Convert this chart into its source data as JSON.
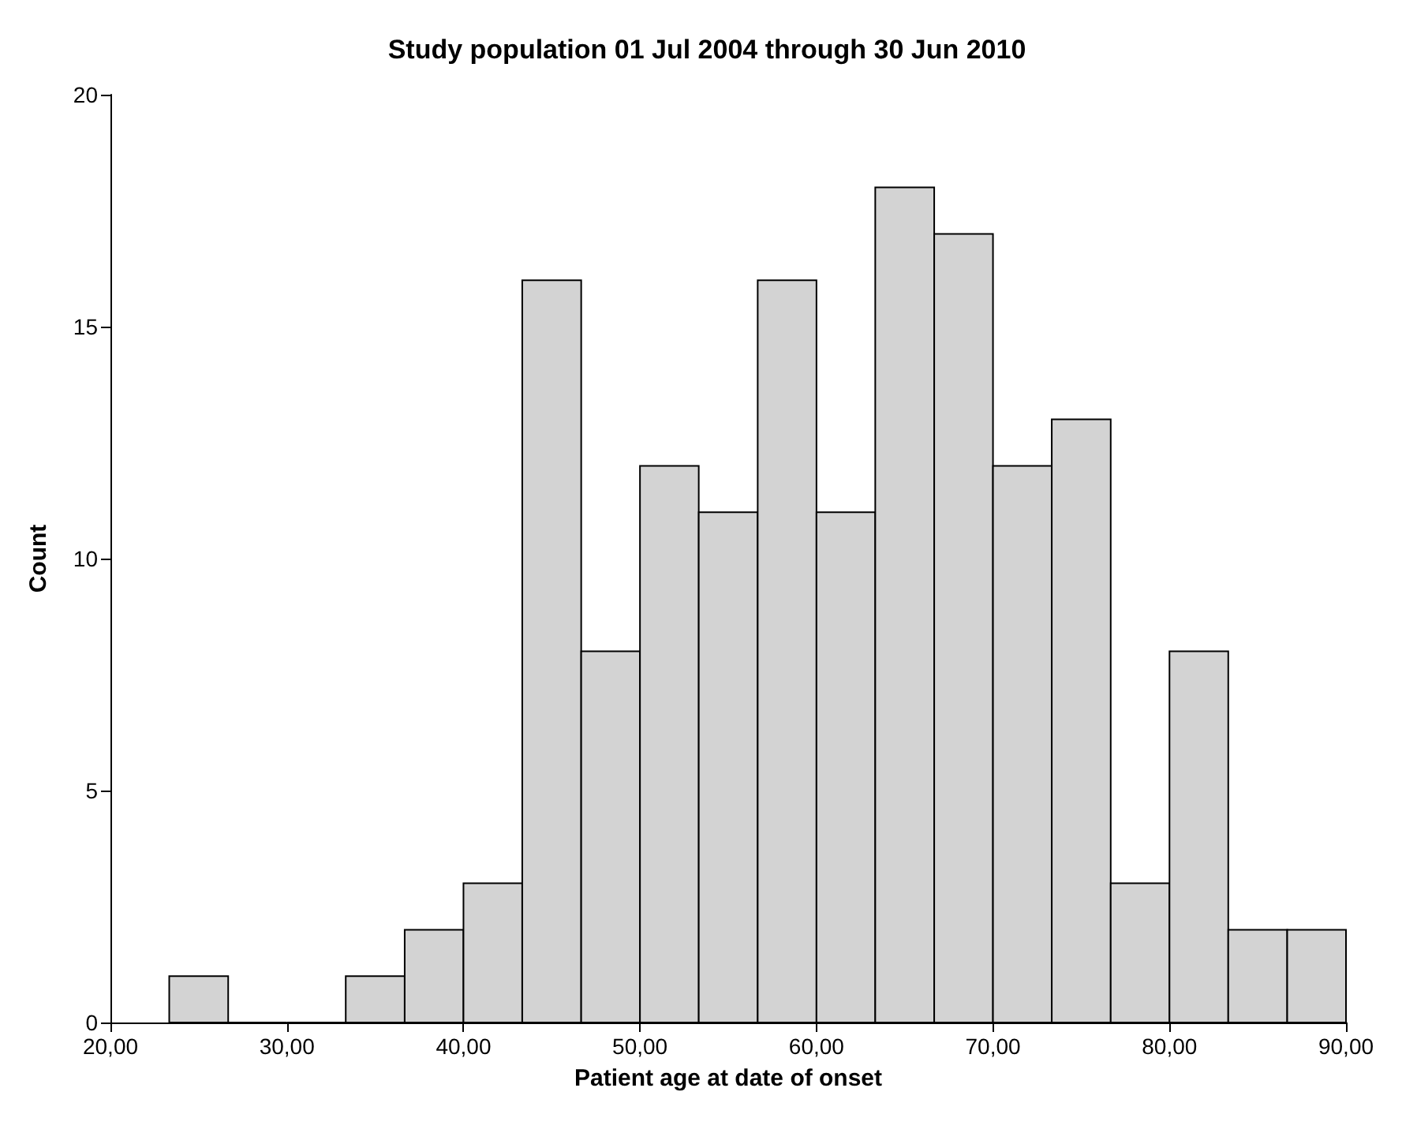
{
  "chart_data": {
    "type": "histogram",
    "title": "Study population 01 Jul 2004 through 30 Jun 2010",
    "xlabel": "Patient age at date of onset",
    "ylabel": "Count",
    "bins": [
      23.33,
      26.67,
      30,
      33.33,
      36.67,
      40,
      43.33,
      46.67,
      50,
      53.33,
      56.67,
      60,
      63.33,
      66.67,
      70,
      73.33,
      76.67,
      80,
      83.33,
      86.67,
      90
    ],
    "values": [
      1,
      0,
      0,
      1,
      2,
      3,
      16,
      8,
      12,
      11,
      16,
      11,
      18,
      17,
      12,
      13,
      3,
      8,
      2,
      2
    ],
    "color": "#d3d3d3",
    "xlim": [
      20,
      90
    ],
    "xticks": [
      {
        "value": 20,
        "label": "20,00"
      },
      {
        "value": 30,
        "label": "30,00"
      },
      {
        "value": 40,
        "label": "40,00"
      },
      {
        "value": 50,
        "label": "50,00"
      },
      {
        "value": 60,
        "label": "60,00"
      },
      {
        "value": 70,
        "label": "70,00"
      },
      {
        "value": 80,
        "label": "80,00"
      },
      {
        "value": 90,
        "label": "90,00"
      }
    ],
    "ylim": [
      0,
      20
    ],
    "yticks": [
      0,
      5,
      10,
      15,
      20
    ],
    "grid": false
  }
}
